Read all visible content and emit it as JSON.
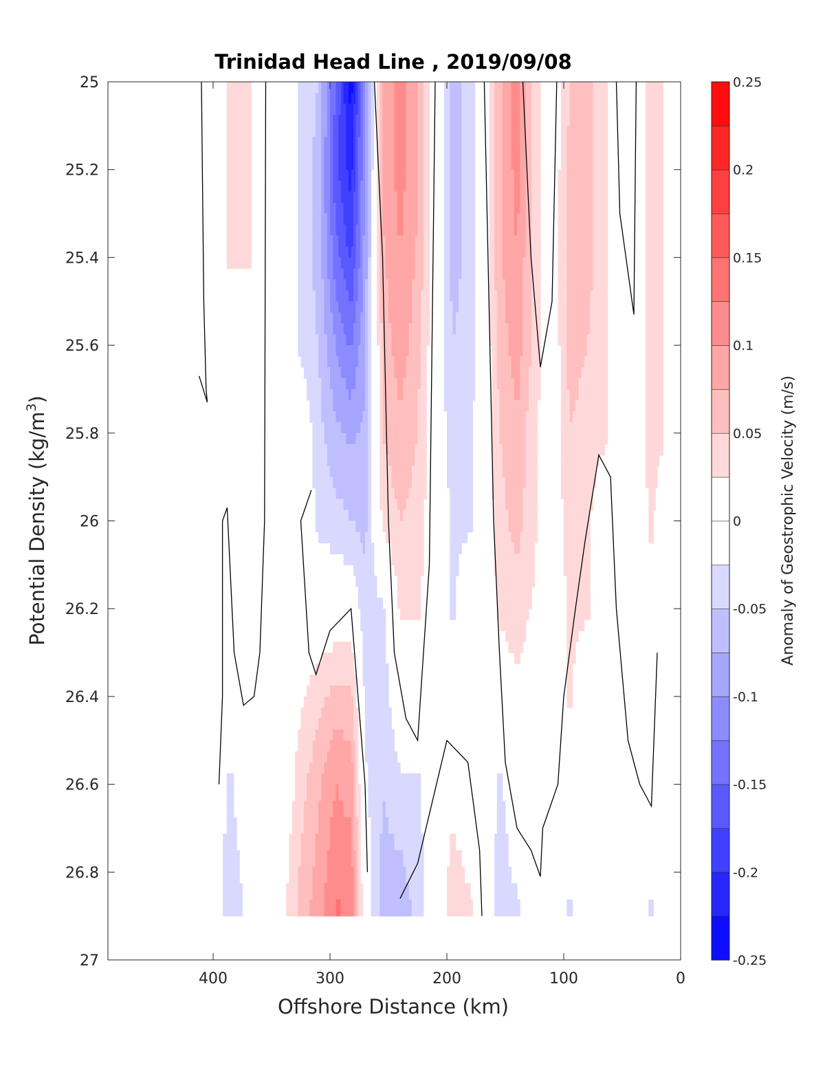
{
  "chart_data": {
    "type": "heatmap",
    "title": "Trinidad Head Line , 2019/09/08",
    "xlabel": "Offshore Distance (km)",
    "ylabel": "Potential Density (kg/m",
    "ylabel_superscript": "3",
    "ylabel_suffix": ")",
    "colorbar_label": "Anomaly of Geostrophic Velocity (m/s)",
    "xlim": [
      490,
      0
    ],
    "ylim": [
      25,
      27
    ],
    "y_reversed": true,
    "x_ticks": [
      400,
      300,
      200,
      100,
      0
    ],
    "y_ticks": [
      25,
      25.2,
      25.4,
      25.6,
      25.8,
      26,
      26.2,
      26.4,
      26.6,
      26.8,
      27
    ],
    "y_tick_labels": [
      "25",
      "25.2",
      "25.4",
      "25.6",
      "25.8",
      "26",
      "26.2",
      "26.4",
      "26.6",
      "26.8",
      "27"
    ],
    "colorbar": {
      "range": [
        -0.25,
        0.25
      ],
      "ticks": [
        -0.25,
        -0.2,
        -0.15,
        -0.1,
        -0.05,
        0,
        0.05,
        0.1,
        0.15,
        0.2,
        0.25
      ],
      "tick_labels": [
        "-0.25",
        "-0.2",
        "-0.15",
        "-0.1",
        "-0.05",
        "0",
        "0.05",
        "0.1",
        "0.15",
        "0.2",
        "0.25"
      ],
      "levels": 20,
      "color_min": "#0000ff",
      "color_zero": "#ffffff",
      "color_max": "#ff0000"
    },
    "data_extent": {
      "density_max": 26.9
    },
    "columns": [
      {
        "x": 405,
        "v": [
          0,
          0,
          0,
          0,
          0,
          0,
          0,
          0,
          0,
          0
        ]
      },
      {
        "x": 385,
        "v": [
          0.03,
          0.03,
          0.03,
          0,
          0,
          0,
          0,
          0,
          -0.03,
          -0.04
        ]
      },
      {
        "x": 370,
        "v": [
          0.03,
          0.03,
          0.03,
          0,
          0,
          0,
          0,
          0,
          0,
          -0.02
        ]
      },
      {
        "x": 355,
        "v": [
          0,
          0,
          0,
          0,
          0,
          0,
          0,
          0,
          0,
          0
        ]
      },
      {
        "x": 340,
        "v": [
          0,
          0,
          0,
          0,
          0,
          0,
          0,
          0,
          0,
          0.02
        ]
      },
      {
        "x": 325,
        "v": [
          -0.03,
          -0.03,
          -0.03,
          -0.03,
          0,
          0,
          0,
          0.02,
          0.04,
          0.06
        ]
      },
      {
        "x": 310,
        "v": [
          -0.05,
          -0.06,
          -0.06,
          -0.05,
          -0.04,
          -0.03,
          0,
          0.04,
          0.07,
          0.09
        ]
      },
      {
        "x": 295,
        "v": [
          -0.15,
          -0.17,
          -0.14,
          -0.1,
          -0.07,
          -0.04,
          0,
          0.06,
          0.1,
          0.13
        ]
      },
      {
        "x": 282,
        "v": [
          -0.24,
          -0.21,
          -0.18,
          -0.13,
          -0.08,
          -0.05,
          0,
          0.06,
          0.09,
          0.12
        ]
      },
      {
        "x": 270,
        "v": [
          -0.1,
          -0.1,
          -0.09,
          -0.08,
          -0.07,
          -0.06,
          -0.04,
          -0.03,
          -0.02,
          0
        ]
      },
      {
        "x": 255,
        "v": [
          0.08,
          0.08,
          0.07,
          0.06,
          0.05,
          0.03,
          -0.03,
          -0.04,
          -0.05,
          -0.06
        ]
      },
      {
        "x": 240,
        "v": [
          0.11,
          0.11,
          0.1,
          0.09,
          0.07,
          0.05,
          0.03,
          0,
          -0.03,
          -0.07
        ]
      },
      {
        "x": 225,
        "v": [
          0.08,
          0.08,
          0.07,
          0.06,
          0.05,
          0.04,
          0.03,
          0,
          -0.03,
          -0.04
        ]
      },
      {
        "x": 210,
        "v": [
          0,
          0,
          0,
          0,
          0,
          0,
          0,
          0,
          0,
          0
        ]
      },
      {
        "x": 195,
        "v": [
          -0.06,
          -0.06,
          -0.06,
          -0.05,
          -0.04,
          -0.03,
          -0.03,
          0,
          0.02,
          0.04
        ]
      },
      {
        "x": 180,
        "v": [
          -0.04,
          -0.04,
          -0.04,
          -0.04,
          -0.03,
          -0.03,
          0,
          0,
          0,
          0.03
        ]
      },
      {
        "x": 168,
        "v": [
          0,
          0,
          0,
          0,
          0,
          0,
          0,
          0,
          0,
          0
        ]
      },
      {
        "x": 155,
        "v": [
          0.07,
          0.07,
          0.07,
          0.06,
          0.05,
          0.04,
          0.03,
          0,
          -0.03,
          -0.04
        ]
      },
      {
        "x": 140,
        "v": [
          0.12,
          0.11,
          0.1,
          0.09,
          0.07,
          0.06,
          0.04,
          0.02,
          0,
          -0.03
        ]
      },
      {
        "x": 125,
        "v": [
          0.04,
          0.04,
          0.04,
          0.04,
          0.03,
          0.03,
          0.02,
          0,
          0,
          0
        ]
      },
      {
        "x": 110,
        "v": [
          0,
          0,
          0,
          0,
          0,
          0,
          0,
          0,
          0,
          0
        ]
      },
      {
        "x": 95,
        "v": [
          0.05,
          0.06,
          0.06,
          0.06,
          0.05,
          0.04,
          0.03,
          0.03,
          0,
          -0.03
        ]
      },
      {
        "x": 80,
        "v": [
          0.06,
          0.06,
          0.06,
          0.05,
          0.04,
          0.03,
          0.03,
          0,
          0,
          0
        ]
      },
      {
        "x": 65,
        "v": [
          0.03,
          0.03,
          0.03,
          0.03,
          0.03,
          0,
          0,
          0,
          0,
          0
        ]
      },
      {
        "x": 50,
        "v": [
          0,
          0,
          0,
          0,
          0,
          0,
          0,
          0,
          0,
          0
        ]
      },
      {
        "x": 40,
        "v": [
          0,
          0,
          0,
          0,
          0,
          0,
          0,
          0,
          0,
          0
        ]
      },
      {
        "x": 25,
        "v": [
          0.04,
          0.04,
          0.04,
          0.04,
          0.04,
          0.03,
          0.02,
          0,
          0,
          -0.03
        ]
      },
      {
        "x": 15,
        "v": [
          0.03,
          0.03,
          0.03,
          0.03,
          0.03,
          0,
          0,
          0,
          0,
          0
        ]
      }
    ],
    "column_densities": [
      25.0,
      25.2,
      25.4,
      25.6,
      25.8,
      26.0,
      26.2,
      26.4,
      26.6,
      26.9
    ],
    "zero_contours": [
      [
        [
          410,
          25.0
        ],
        [
          408,
          25.5
        ],
        [
          406,
          25.7
        ],
        [
          405,
          25.73
        ],
        [
          412,
          25.67
        ]
      ],
      [
        [
          395,
          26.6
        ],
        [
          392,
          26.4
        ],
        [
          392,
          26.0
        ],
        [
          388,
          25.97
        ],
        [
          382,
          26.3
        ],
        [
          374,
          26.42
        ],
        [
          365,
          26.4
        ],
        [
          360,
          26.3
        ],
        [
          356,
          26.0
        ],
        [
          355,
          25.0
        ]
      ],
      [
        [
          316,
          25.93
        ],
        [
          325,
          26.0
        ],
        [
          318,
          26.3
        ],
        [
          312,
          26.35
        ],
        [
          300,
          26.25
        ],
        [
          282,
          26.2
        ],
        [
          270,
          26.6
        ],
        [
          268,
          26.8
        ]
      ],
      [
        [
          262,
          25.0
        ],
        [
          255,
          25.4
        ],
        [
          250,
          26.0
        ],
        [
          245,
          26.3
        ],
        [
          235,
          26.45
        ],
        [
          225,
          26.5
        ],
        [
          215,
          26.1
        ],
        [
          210,
          25.0
        ]
      ],
      [
        [
          240,
          26.86
        ],
        [
          225,
          26.78
        ],
        [
          200,
          26.5
        ],
        [
          182,
          26.55
        ],
        [
          172,
          26.75
        ],
        [
          170,
          26.9
        ]
      ],
      [
        [
          168,
          25.0
        ],
        [
          160,
          26.0
        ],
        [
          155,
          26.3
        ],
        [
          150,
          26.55
        ],
        [
          140,
          26.7
        ],
        [
          128,
          26.75
        ],
        [
          120,
          26.81
        ],
        [
          118,
          26.7
        ],
        [
          105,
          26.6
        ],
        [
          100,
          26.4
        ],
        [
          90,
          26.2
        ],
        [
          82,
          26.05
        ],
        [
          70,
          25.85
        ],
        [
          60,
          25.9
        ],
        [
          55,
          26.2
        ],
        [
          45,
          26.5
        ],
        [
          35,
          26.6
        ],
        [
          25,
          26.65
        ],
        [
          20,
          26.3
        ]
      ],
      [
        [
          135,
          25.0
        ],
        [
          128,
          25.4
        ],
        [
          120,
          25.65
        ],
        [
          110,
          25.5
        ],
        [
          106,
          25.0
        ]
      ],
      [
        [
          55,
          25.0
        ],
        [
          52,
          25.3
        ],
        [
          40,
          25.53
        ],
        [
          38,
          25.0
        ]
      ]
    ]
  }
}
